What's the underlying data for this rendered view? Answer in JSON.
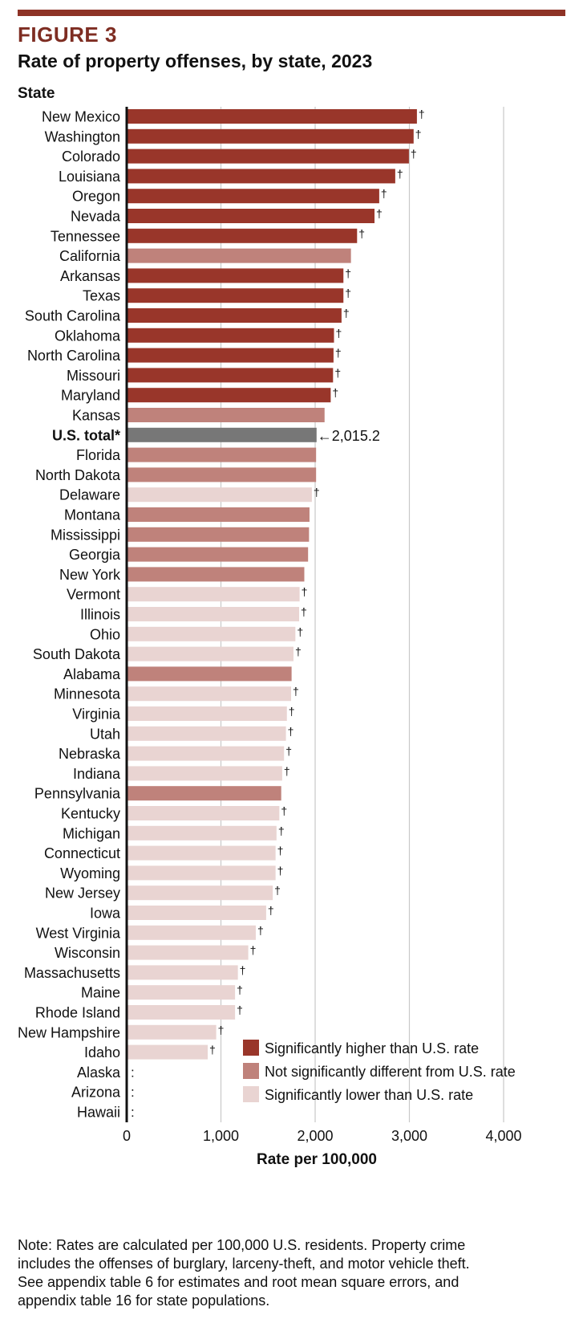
{
  "figure": {
    "label": "FIGURE 3",
    "title": "Rate of property offenses, by state, 2023",
    "y_axis_caption": "State"
  },
  "chart_data": {
    "type": "bar",
    "orientation": "horizontal",
    "xlabel": "Rate per 100,000",
    "xlim": [
      0,
      4000
    ],
    "xticks": [
      0,
      1000,
      2000,
      3000,
      4000
    ],
    "xtick_labels": [
      "0",
      "1,000",
      "2,000",
      "3,000",
      "4,000"
    ],
    "grid": true,
    "colors": {
      "higher": "#99362a",
      "not_different": "#bf827b",
      "lower": "#e9d4d2",
      "total": "#777777"
    },
    "legend": [
      {
        "key": "higher",
        "label": "Significantly higher than U.S. rate"
      },
      {
        "key": "not_different",
        "label": "Not significantly different from U.S. rate"
      },
      {
        "key": "lower",
        "label": "Significantly lower than U.S. rate"
      }
    ],
    "legend_position": "bottom-right",
    "total_annotation": "←2,015.2",
    "dagger": "†",
    "missing_symbol": ":",
    "bars": [
      {
        "state": "New Mexico",
        "value": 3080,
        "group": "higher",
        "dagger": true
      },
      {
        "state": "Washington",
        "value": 3045,
        "group": "higher",
        "dagger": true
      },
      {
        "state": "Colorado",
        "value": 2995,
        "group": "higher",
        "dagger": true
      },
      {
        "state": "Louisiana",
        "value": 2850,
        "group": "higher",
        "dagger": true
      },
      {
        "state": "Oregon",
        "value": 2680,
        "group": "higher",
        "dagger": true
      },
      {
        "state": "Nevada",
        "value": 2630,
        "group": "higher",
        "dagger": true
      },
      {
        "state": "Tennessee",
        "value": 2445,
        "group": "higher",
        "dagger": true
      },
      {
        "state": "California",
        "value": 2380,
        "group": "not_different",
        "dagger": false
      },
      {
        "state": "Arkansas",
        "value": 2300,
        "group": "higher",
        "dagger": true
      },
      {
        "state": "Texas",
        "value": 2300,
        "group": "higher",
        "dagger": true
      },
      {
        "state": "South Carolina",
        "value": 2280,
        "group": "higher",
        "dagger": true
      },
      {
        "state": "Oklahoma",
        "value": 2200,
        "group": "higher",
        "dagger": true
      },
      {
        "state": "North Carolina",
        "value": 2195,
        "group": "higher",
        "dagger": true
      },
      {
        "state": "Missouri",
        "value": 2190,
        "group": "higher",
        "dagger": true
      },
      {
        "state": "Maryland",
        "value": 2165,
        "group": "higher",
        "dagger": true
      },
      {
        "state": "Kansas",
        "value": 2100,
        "group": "not_different",
        "dagger": false
      },
      {
        "state": "U.S. total*",
        "value": 2015.2,
        "group": "total",
        "dagger": false,
        "bold": true
      },
      {
        "state": "Florida",
        "value": 2010,
        "group": "not_different",
        "dagger": false
      },
      {
        "state": "North Dakota",
        "value": 2010,
        "group": "not_different",
        "dagger": false
      },
      {
        "state": "Delaware",
        "value": 1965,
        "group": "lower",
        "dagger": true
      },
      {
        "state": "Montana",
        "value": 1940,
        "group": "not_different",
        "dagger": false
      },
      {
        "state": "Mississippi",
        "value": 1935,
        "group": "not_different",
        "dagger": false
      },
      {
        "state": "Georgia",
        "value": 1925,
        "group": "not_different",
        "dagger": false
      },
      {
        "state": "New York",
        "value": 1885,
        "group": "not_different",
        "dagger": false
      },
      {
        "state": "Vermont",
        "value": 1835,
        "group": "lower",
        "dagger": true
      },
      {
        "state": "Illinois",
        "value": 1830,
        "group": "lower",
        "dagger": true
      },
      {
        "state": "Ohio",
        "value": 1790,
        "group": "lower",
        "dagger": true
      },
      {
        "state": "South Dakota",
        "value": 1770,
        "group": "lower",
        "dagger": true
      },
      {
        "state": "Alabama",
        "value": 1750,
        "group": "not_different",
        "dagger": false
      },
      {
        "state": "Minnesota",
        "value": 1745,
        "group": "lower",
        "dagger": true
      },
      {
        "state": "Virginia",
        "value": 1700,
        "group": "lower",
        "dagger": true
      },
      {
        "state": "Utah",
        "value": 1690,
        "group": "lower",
        "dagger": true
      },
      {
        "state": "Nebraska",
        "value": 1670,
        "group": "lower",
        "dagger": true
      },
      {
        "state": "Indiana",
        "value": 1650,
        "group": "lower",
        "dagger": true
      },
      {
        "state": "Pennsylvania",
        "value": 1640,
        "group": "not_different",
        "dagger": false
      },
      {
        "state": "Kentucky",
        "value": 1620,
        "group": "lower",
        "dagger": true
      },
      {
        "state": "Michigan",
        "value": 1590,
        "group": "lower",
        "dagger": true
      },
      {
        "state": "Connecticut",
        "value": 1580,
        "group": "lower",
        "dagger": true
      },
      {
        "state": "Wyoming",
        "value": 1580,
        "group": "lower",
        "dagger": true
      },
      {
        "state": "New Jersey",
        "value": 1550,
        "group": "lower",
        "dagger": true
      },
      {
        "state": "Iowa",
        "value": 1480,
        "group": "lower",
        "dagger": true
      },
      {
        "state": "West Virginia",
        "value": 1370,
        "group": "lower",
        "dagger": true
      },
      {
        "state": "Wisconsin",
        "value": 1290,
        "group": "lower",
        "dagger": true
      },
      {
        "state": "Massachusetts",
        "value": 1180,
        "group": "lower",
        "dagger": true
      },
      {
        "state": "Maine",
        "value": 1150,
        "group": "lower",
        "dagger": true
      },
      {
        "state": "Rhode Island",
        "value": 1150,
        "group": "lower",
        "dagger": true
      },
      {
        "state": "New Hampshire",
        "value": 950,
        "group": "lower",
        "dagger": true
      },
      {
        "state": "Idaho",
        "value": 860,
        "group": "lower",
        "dagger": true
      },
      {
        "state": "Alaska",
        "value": null,
        "group": "missing",
        "dagger": false
      },
      {
        "state": "Arizona",
        "value": null,
        "group": "missing",
        "dagger": false
      },
      {
        "state": "Hawaii",
        "value": null,
        "group": "missing",
        "dagger": false
      }
    ]
  },
  "note": {
    "line1": "Note: Rates are calculated per 100,000 U.S. residents. Property crime",
    "line2": "includes the offenses of burglary, larceny-theft, and motor vehicle theft.",
    "line3": "See appendix table 6 for estimates and root mean square errors, and",
    "line4": "appendix table 16 for state populations."
  }
}
